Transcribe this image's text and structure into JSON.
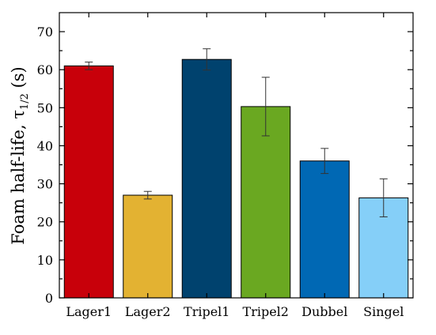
{
  "chart_data": {
    "type": "bar",
    "categories": [
      "Lager1",
      "Lager2",
      "Tripel1",
      "Tripel2",
      "Dubbel",
      "Singel"
    ],
    "values": [
      61,
      27,
      62.7,
      50.3,
      36,
      26.3
    ],
    "errors": [
      1.0,
      1.0,
      2.8,
      7.7,
      3.3,
      5.0
    ],
    "colors": [
      "#c8000a",
      "#e3b232",
      "#00426e",
      "#6aa821",
      "#0068b4",
      "#85cff8"
    ],
    "ylabel_main": "Foam half-life, τ",
    "ylabel_sub": "1/2",
    "ylabel_unit": " (s)",
    "ylim": [
      0,
      75
    ],
    "yticks": [
      0,
      10,
      20,
      30,
      40,
      50,
      60,
      70
    ],
    "grid": false
  }
}
